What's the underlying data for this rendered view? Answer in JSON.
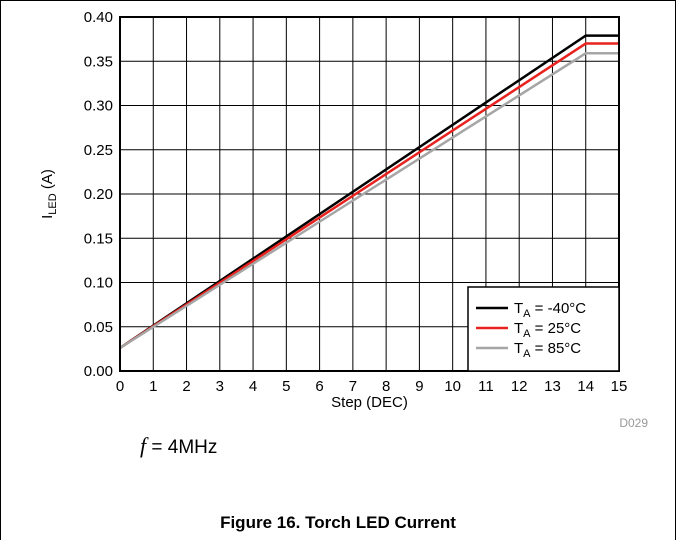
{
  "chart_data": {
    "type": "line",
    "title": "Figure 16. Torch LED Current",
    "xlabel": "Step (DEC)",
    "ylabel_main": "I",
    "ylabel_sub": "LED",
    "ylabel_unit": " (A)",
    "xlim": [
      0,
      15
    ],
    "ylim": [
      0,
      0.4
    ],
    "xticks": [
      "0",
      "1",
      "2",
      "3",
      "4",
      "5",
      "6",
      "7",
      "8",
      "9",
      "10",
      "11",
      "12",
      "13",
      "14",
      "15"
    ],
    "yticks": [
      "0.00",
      "0.05",
      "0.10",
      "0.15",
      "0.20",
      "0.25",
      "0.30",
      "0.35",
      "0.40"
    ],
    "grid": true,
    "legend_position": "bottom-right",
    "series": [
      {
        "legend_main": "T",
        "legend_sub": "A",
        "legend_rest": " = -40°C",
        "color": "#000000",
        "x": [
          0,
          14,
          15
        ],
        "y": [
          0.026,
          0.379,
          0.379
        ]
      },
      {
        "legend_main": "T",
        "legend_sub": "A",
        "legend_rest": " = 25°C",
        "color": "#e8231f",
        "x": [
          0,
          14,
          15
        ],
        "y": [
          0.026,
          0.37,
          0.37
        ]
      },
      {
        "legend_main": "T",
        "legend_sub": "A",
        "legend_rest": " = 85°C",
        "color": "#a6a6a6",
        "x": [
          0,
          14,
          15
        ],
        "y": [
          0.026,
          0.359,
          0.359
        ]
      }
    ],
    "figure_id": "D029"
  },
  "annotation": {
    "symbol": "f",
    "text": " = 4MHz"
  }
}
